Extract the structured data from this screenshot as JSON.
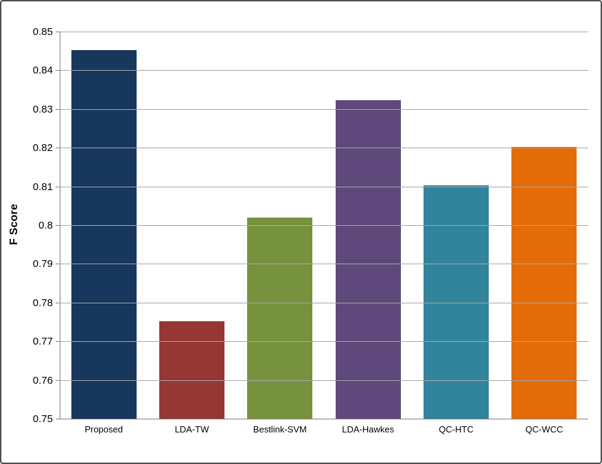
{
  "chart_data": {
    "type": "bar",
    "title": "",
    "xlabel": "",
    "ylabel": "F Score",
    "categories": [
      "Proposed",
      "LDA-TW",
      "Bestlink-SVM",
      "LDA-Hawkes",
      "QC-HTC",
      "QC-WCC"
    ],
    "values": [
      0.8452,
      0.7752,
      0.802,
      0.8322,
      0.8102,
      0.8202
    ],
    "bar_colors": [
      "#17375D",
      "#953734",
      "#76923C",
      "#5F497A",
      "#31849B",
      "#E36C09"
    ],
    "ylim": [
      0.75,
      0.85
    ],
    "ytick_step": 0.01,
    "ytick_labels": [
      "0.75",
      "0.76",
      "0.77",
      "0.78",
      "0.79",
      "0.8",
      "0.81",
      "0.82",
      "0.83",
      "0.84",
      "0.85"
    ],
    "grid": true,
    "legend": "none"
  },
  "colors": {
    "background": "#FFFFFF",
    "gridline": "#A6A6A6",
    "axis_line": "#808080",
    "frame_border": "#4D4D4D",
    "text": "#000000"
  }
}
